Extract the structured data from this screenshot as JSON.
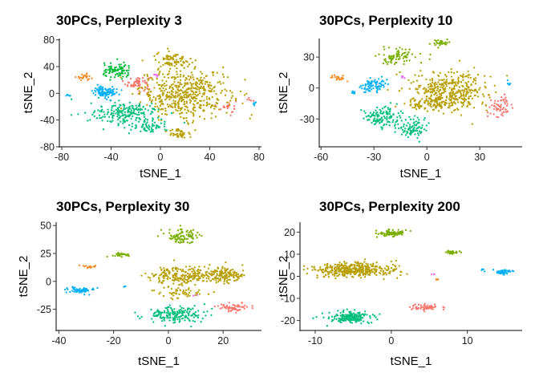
{
  "chart_data": [
    {
      "type": "scatter",
      "title": "30PCs, Perplexity 3",
      "xlabel": "tSNE_1",
      "ylabel": "tSNE_2",
      "xlim": [
        -82,
        82
      ],
      "ylim": [
        -80,
        82
      ],
      "xticks": [
        -80,
        -40,
        0,
        40,
        80
      ],
      "yticks": [
        -80,
        -40,
        0,
        40,
        80
      ],
      "grid": false,
      "series": [
        {
          "color": "#F8766D",
          "clusters": [
            {
              "cx": -18,
              "cy": 15,
              "rx": 10,
              "ry": 11,
              "n": 60
            },
            {
              "cx": 55,
              "cy": -20,
              "rx": 6,
              "ry": 12,
              "n": 20
            },
            {
              "cx": 72,
              "cy": -8,
              "rx": 3,
              "ry": 4,
              "n": 5
            }
          ]
        },
        {
          "color": "#B79F00",
          "clusters": [
            {
              "cx": 20,
              "cy": 0,
              "rx": 36,
              "ry": 36,
              "n": 500
            },
            {
              "cx": 10,
              "cy": 50,
              "rx": 14,
              "ry": 12,
              "n": 80
            },
            {
              "cx": 15,
              "cy": -60,
              "rx": 10,
              "ry": 8,
              "n": 40
            }
          ]
        },
        {
          "color": "#00BA38",
          "clusters": [
            {
              "cx": -35,
              "cy": 32,
              "rx": 12,
              "ry": 12,
              "n": 90
            }
          ]
        },
        {
          "color": "#00BF7D",
          "clusters": [
            {
              "cx": -28,
              "cy": -30,
              "rx": 28,
              "ry": 16,
              "n": 200
            },
            {
              "cx": -10,
              "cy": -50,
              "rx": 16,
              "ry": 10,
              "n": 60
            }
          ]
        },
        {
          "color": "#00B0F6",
          "clusters": [
            {
              "cx": -45,
              "cy": 3,
              "rx": 11,
              "ry": 10,
              "n": 90
            },
            {
              "cx": -75,
              "cy": -5,
              "rx": 2,
              "ry": 3,
              "n": 5
            },
            {
              "cx": 77,
              "cy": -15,
              "rx": 2,
              "ry": 3,
              "n": 5
            }
          ]
        },
        {
          "color": "#E76BF3",
          "clusters": [
            {
              "cx": -3,
              "cy": 28,
              "rx": 2,
              "ry": 3,
              "n": 6
            }
          ]
        },
        {
          "color": "#F28E2B",
          "clusters": [
            {
              "cx": -62,
              "cy": 25,
              "rx": 6,
              "ry": 5,
              "n": 25
            }
          ]
        }
      ]
    },
    {
      "type": "scatter",
      "title": "30PCs, Perplexity 10",
      "xlabel": "tSNE_1",
      "ylabel": "tSNE_2",
      "xlim": [
        -61,
        54
      ],
      "ylim": [
        -57,
        48
      ],
      "xticks": [
        -60,
        -30,
        0,
        30
      ],
      "yticks": [
        -30,
        0,
        30
      ],
      "grid": false,
      "series": [
        {
          "color": "#F8766D",
          "clusters": [
            {
              "cx": 42,
              "cy": -18,
              "rx": 7,
              "ry": 10,
              "n": 60
            }
          ]
        },
        {
          "color": "#B79F00",
          "clusters": [
            {
              "cx": 12,
              "cy": -3,
              "rx": 22,
              "ry": 18,
              "n": 400
            },
            {
              "cx": 2,
              "cy": -16,
              "rx": 14,
              "ry": 6,
              "n": 80
            }
          ]
        },
        {
          "color": "#7CAE00",
          "clusters": [
            {
              "cx": -17,
              "cy": 30,
              "rx": 10,
              "ry": 8,
              "n": 80
            },
            {
              "cx": 8,
              "cy": 44,
              "rx": 6,
              "ry": 3,
              "n": 30
            }
          ]
        },
        {
          "color": "#00BF7D",
          "clusters": [
            {
              "cx": -25,
              "cy": -28,
              "rx": 10,
              "ry": 10,
              "n": 120
            },
            {
              "cx": -8,
              "cy": -38,
              "rx": 8,
              "ry": 10,
              "n": 90
            }
          ]
        },
        {
          "color": "#00B0F6",
          "clusters": [
            {
              "cx": -30,
              "cy": 3,
              "rx": 7,
              "ry": 6,
              "n": 80
            },
            {
              "cx": -41,
              "cy": -4,
              "rx": 2,
              "ry": 2,
              "n": 6
            },
            {
              "cx": 47,
              "cy": 5,
              "rx": 2,
              "ry": 3,
              "n": 5
            }
          ]
        },
        {
          "color": "#E76BF3",
          "clusters": [
            {
              "cx": -14,
              "cy": 10,
              "rx": 2,
              "ry": 2,
              "n": 6
            }
          ]
        },
        {
          "color": "#F28E2B",
          "clusters": [
            {
              "cx": -50,
              "cy": 10,
              "rx": 4,
              "ry": 3,
              "n": 25
            }
          ]
        }
      ]
    },
    {
      "type": "scatter",
      "title": "30PCs, Perplexity 30",
      "xlabel": "tSNE_1",
      "ylabel": "tSNE_2",
      "xlim": [
        -41,
        34
      ],
      "ylim": [
        -44,
        53
      ],
      "xticks": [
        -40,
        -20,
        0,
        20
      ],
      "yticks": [
        -25,
        0,
        25,
        50
      ],
      "grid": false,
      "series": [
        {
          "color": "#F8766D",
          "clusters": [
            {
              "cx": 24,
              "cy": -23,
              "rx": 6,
              "ry": 4,
              "n": 60
            }
          ]
        },
        {
          "color": "#B79F00",
          "clusters": [
            {
              "cx": 5,
              "cy": 5,
              "rx": 11,
              "ry": 8,
              "n": 200
            },
            {
              "cx": 20,
              "cy": 6,
              "rx": 8,
              "ry": 7,
              "n": 150
            },
            {
              "cx": 5,
              "cy": -10,
              "rx": 8,
              "ry": 5,
              "n": 50
            }
          ]
        },
        {
          "color": "#7CAE00",
          "clusters": [
            {
              "cx": 5,
              "cy": 40,
              "rx": 6,
              "ry": 6,
              "n": 90
            },
            {
              "cx": -18,
              "cy": 24,
              "rx": 4,
              "ry": 2,
              "n": 30
            }
          ]
        },
        {
          "color": "#00BF7D",
          "clusters": [
            {
              "cx": 2,
              "cy": -30,
              "rx": 10,
              "ry": 7,
              "n": 180
            }
          ]
        },
        {
          "color": "#00B0F6",
          "clusters": [
            {
              "cx": -32,
              "cy": -8,
              "rx": 5,
              "ry": 3,
              "n": 60
            },
            {
              "cx": -16,
              "cy": -5,
              "rx": 1,
              "ry": 1,
              "n": 3
            }
          ]
        },
        {
          "color": "#E76BF3",
          "clusters": [
            {
              "cx": 10,
              "cy": -13,
              "rx": 1,
              "ry": 1,
              "n": 3
            }
          ]
        },
        {
          "color": "#F28E2B",
          "clusters": [
            {
              "cx": -29,
              "cy": 13,
              "rx": 2.5,
              "ry": 1.5,
              "n": 20
            }
          ]
        }
      ]
    },
    {
      "type": "scatter",
      "title": "30PCs, Perplexity 200",
      "xlabel": "tSNE_1",
      "ylabel": "tSNE_2",
      "xlim": [
        -12,
        17.2
      ],
      "ylim": [
        -24.5,
        24.5
      ],
      "xticks": [
        -10,
        0,
        10
      ],
      "yticks": [
        -20,
        -10,
        0,
        10,
        20
      ],
      "grid": false,
      "series": [
        {
          "color": "#F8766D",
          "clusters": [
            {
              "cx": 4.5,
              "cy": -14,
              "rx": 2,
              "ry": 1.5,
              "n": 60
            }
          ]
        },
        {
          "color": "#B79F00",
          "clusters": [
            {
              "cx": -5,
              "cy": 3,
              "rx": 5.5,
              "ry": 3.5,
              "n": 400
            }
          ]
        },
        {
          "color": "#7CAE00",
          "clusters": [
            {
              "cx": 0,
              "cy": 19.5,
              "rx": 2,
              "ry": 1.5,
              "n": 80
            },
            {
              "cx": 8,
              "cy": 11,
              "rx": 1.2,
              "ry": 0.8,
              "n": 25
            }
          ]
        },
        {
          "color": "#00BF7D",
          "clusters": [
            {
              "cx": -5.5,
              "cy": -18.5,
              "rx": 3,
              "ry": 2.5,
              "n": 180
            }
          ]
        },
        {
          "color": "#00B0F6",
          "clusters": [
            {
              "cx": 14.5,
              "cy": 2,
              "rx": 1.4,
              "ry": 1,
              "n": 50
            },
            {
              "cx": 12,
              "cy": 3,
              "rx": 0.2,
              "ry": 0.4,
              "n": 3
            }
          ]
        },
        {
          "color": "#E76BF3",
          "clusters": [
            {
              "cx": 5.5,
              "cy": 1,
              "rx": 0.3,
              "ry": 0.3,
              "n": 3
            }
          ]
        },
        {
          "color": "#F28E2B",
          "clusters": [
            {
              "cx": 6,
              "cy": -1.5,
              "rx": 0.3,
              "ry": 0.4,
              "n": 4
            }
          ]
        }
      ]
    }
  ]
}
